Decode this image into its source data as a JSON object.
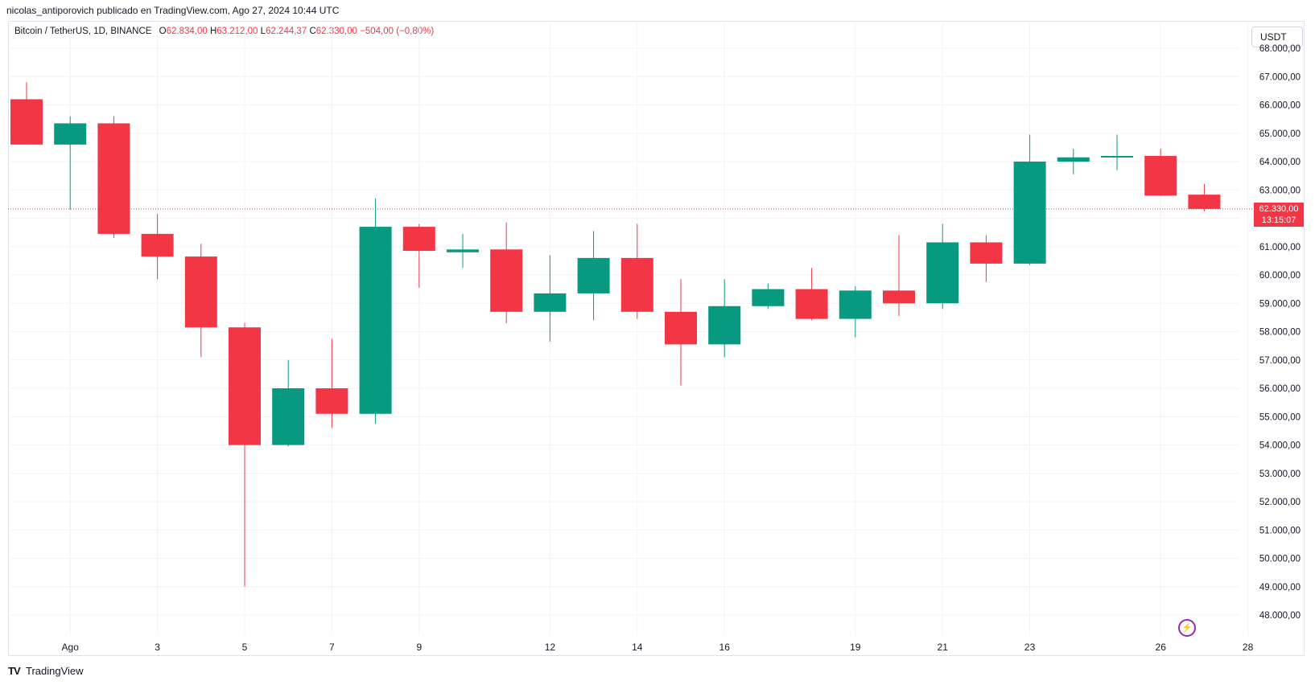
{
  "header": {
    "attribution": "nicolas_antiporovich publicado en TradingView.com, Ago 27, 2024 10:44 UTC"
  },
  "legend": {
    "symbol": "Bitcoin / TetherUS, 1D, BINANCE",
    "open_label": "O",
    "open": "62.834,00",
    "high_label": "H",
    "high": "63.212,00",
    "low_label": "L",
    "low": "62.244,37",
    "close_label": "C",
    "close": "62.330,00",
    "change": "−504,00 (−0,80%)"
  },
  "currency": "USDT",
  "last_price": {
    "price": "62.330,00",
    "countdown": "13:15:07"
  },
  "brand": {
    "logo": "TV",
    "name": "TradingView"
  },
  "colors": {
    "up": "#089981",
    "down": "#f23645",
    "grid": "#f0f3fa",
    "axis_text": "#131722",
    "last_line": "#f23645",
    "bolt": "#9c27b0"
  },
  "icons": {
    "bolt": "lightning-icon"
  },
  "chart_data": {
    "type": "candlestick",
    "ylim": [
      47500,
      68500
    ],
    "y_ticks": [
      48000,
      49000,
      50000,
      51000,
      52000,
      53000,
      54000,
      55000,
      56000,
      57000,
      58000,
      59000,
      60000,
      61000,
      62000,
      63000,
      64000,
      65000,
      66000,
      67000,
      68000
    ],
    "y_tick_labels": [
      "48.000,00",
      "49.000,00",
      "50.000,00",
      "51.000,00",
      "52.000,00",
      "53.000,00",
      "54.000,00",
      "55.000,00",
      "56.000,00",
      "57.000,00",
      "58.000,00",
      "59.000,00",
      "60.000,00",
      "61.000,00",
      "62.000,00",
      "63.000,00",
      "64.000,00",
      "65.000,00",
      "66.000,00",
      "67.000,00",
      "68.000,00"
    ],
    "x_ticks": [
      {
        "day": 1,
        "label": "Ago"
      },
      {
        "day": 3,
        "label": "3"
      },
      {
        "day": 5,
        "label": "5"
      },
      {
        "day": 7,
        "label": "7"
      },
      {
        "day": 9,
        "label": "9"
      },
      {
        "day": 12,
        "label": "12"
      },
      {
        "day": 14,
        "label": "14"
      },
      {
        "day": 16,
        "label": "16"
      },
      {
        "day": 19,
        "label": "19"
      },
      {
        "day": 21,
        "label": "21"
      },
      {
        "day": 23,
        "label": "23"
      },
      {
        "day": 26,
        "label": "26"
      },
      {
        "day": 28,
        "label": "28"
      }
    ],
    "last_price": 62330,
    "candles": [
      {
        "date": "2024-07-31",
        "o": 66200,
        "h": 66800,
        "l": 64600,
        "c": 64600
      },
      {
        "date": "2024-08-01",
        "o": 64600,
        "h": 65600,
        "l": 62300,
        "c": 65350
      },
      {
        "date": "2024-08-02",
        "o": 65350,
        "h": 65600,
        "l": 61300,
        "c": 61450
      },
      {
        "date": "2024-08-03",
        "o": 61450,
        "h": 62150,
        "l": 59850,
        "c": 60650
      },
      {
        "date": "2024-08-04",
        "o": 60650,
        "h": 61100,
        "l": 57100,
        "c": 58150
      },
      {
        "date": "2024-08-05",
        "o": 58150,
        "h": 58300,
        "l": 49000,
        "c": 54000
      },
      {
        "date": "2024-08-06",
        "o": 54000,
        "h": 57000,
        "l": 53950,
        "c": 56000
      },
      {
        "date": "2024-08-07",
        "o": 56000,
        "h": 57750,
        "l": 54600,
        "c": 55100
      },
      {
        "date": "2024-08-08",
        "o": 55100,
        "h": 62700,
        "l": 54750,
        "c": 61700
      },
      {
        "date": "2024-08-09",
        "o": 61700,
        "h": 61800,
        "l": 59550,
        "c": 60850
      },
      {
        "date": "2024-08-10",
        "o": 60800,
        "h": 61450,
        "l": 60250,
        "c": 60900
      },
      {
        "date": "2024-08-11",
        "o": 60900,
        "h": 61850,
        "l": 58300,
        "c": 58700
      },
      {
        "date": "2024-08-12",
        "o": 58700,
        "h": 60700,
        "l": 57650,
        "c": 59350
      },
      {
        "date": "2024-08-13",
        "o": 59350,
        "h": 61550,
        "l": 58400,
        "c": 60600
      },
      {
        "date": "2024-08-14",
        "o": 60600,
        "h": 61800,
        "l": 58450,
        "c": 58700
      },
      {
        "date": "2024-08-15",
        "o": 58700,
        "h": 59850,
        "l": 56100,
        "c": 57550
      },
      {
        "date": "2024-08-16",
        "o": 57550,
        "h": 59850,
        "l": 57100,
        "c": 58900
      },
      {
        "date": "2024-08-17",
        "o": 58900,
        "h": 59700,
        "l": 58800,
        "c": 59500
      },
      {
        "date": "2024-08-18",
        "o": 59500,
        "h": 60250,
        "l": 58400,
        "c": 58450
      },
      {
        "date": "2024-08-19",
        "o": 58450,
        "h": 59600,
        "l": 57800,
        "c": 59450
      },
      {
        "date": "2024-08-20",
        "o": 59450,
        "h": 61400,
        "l": 58550,
        "c": 59000
      },
      {
        "date": "2024-08-21",
        "o": 59000,
        "h": 61800,
        "l": 58800,
        "c": 61150
      },
      {
        "date": "2024-08-22",
        "o": 61150,
        "h": 61400,
        "l": 59750,
        "c": 60400
      },
      {
        "date": "2024-08-23",
        "o": 60400,
        "h": 64950,
        "l": 60350,
        "c": 64000
      },
      {
        "date": "2024-08-24",
        "o": 64000,
        "h": 64450,
        "l": 63550,
        "c": 64150
      },
      {
        "date": "2024-08-25",
        "o": 64150,
        "h": 64950,
        "l": 63700,
        "c": 64200
      },
      {
        "date": "2024-08-26",
        "o": 64200,
        "h": 64450,
        "l": 62800,
        "c": 62800
      },
      {
        "date": "2024-08-27",
        "o": 62834,
        "h": 63212,
        "l": 62244,
        "c": 62330
      }
    ]
  }
}
